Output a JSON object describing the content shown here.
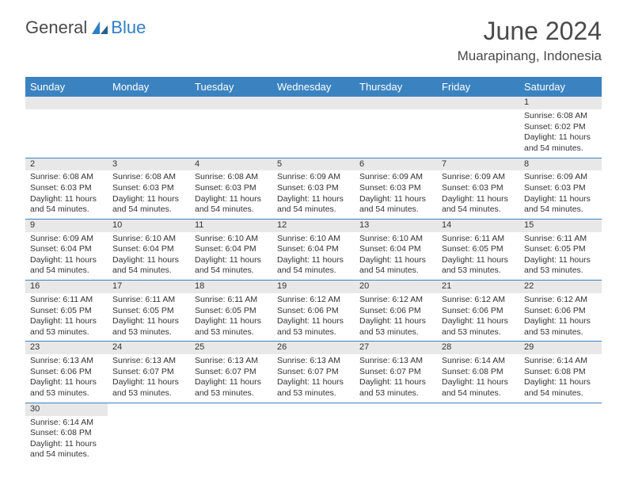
{
  "logo": {
    "word1": "General",
    "word2": "Blue"
  },
  "title": "June 2024",
  "subtitle": "Muarapinang, Indonesia",
  "colors": {
    "header_bg": "#3b83c0",
    "header_text": "#ffffff",
    "daynum_bg": "#e8e8e8",
    "border": "#3b83c0",
    "text": "#333333",
    "title_text": "#4a4a4a",
    "logo_blue": "#2f7fc3"
  },
  "typography": {
    "title_fontsize": 32,
    "subtitle_fontsize": 17,
    "header_fontsize": 13,
    "cell_fontsize": 10.5,
    "daynum_fontsize": 11
  },
  "columns": [
    "Sunday",
    "Monday",
    "Tuesday",
    "Wednesday",
    "Thursday",
    "Friday",
    "Saturday"
  ],
  "grid": [
    [
      null,
      null,
      null,
      null,
      null,
      null,
      {
        "n": 1,
        "sr": "6:08 AM",
        "ss": "6:02 PM",
        "dl": "11 hours and 54 minutes."
      }
    ],
    [
      {
        "n": 2,
        "sr": "6:08 AM",
        "ss": "6:03 PM",
        "dl": "11 hours and 54 minutes."
      },
      {
        "n": 3,
        "sr": "6:08 AM",
        "ss": "6:03 PM",
        "dl": "11 hours and 54 minutes."
      },
      {
        "n": 4,
        "sr": "6:08 AM",
        "ss": "6:03 PM",
        "dl": "11 hours and 54 minutes."
      },
      {
        "n": 5,
        "sr": "6:09 AM",
        "ss": "6:03 PM",
        "dl": "11 hours and 54 minutes."
      },
      {
        "n": 6,
        "sr": "6:09 AM",
        "ss": "6:03 PM",
        "dl": "11 hours and 54 minutes."
      },
      {
        "n": 7,
        "sr": "6:09 AM",
        "ss": "6:03 PM",
        "dl": "11 hours and 54 minutes."
      },
      {
        "n": 8,
        "sr": "6:09 AM",
        "ss": "6:03 PM",
        "dl": "11 hours and 54 minutes."
      }
    ],
    [
      {
        "n": 9,
        "sr": "6:09 AM",
        "ss": "6:04 PM",
        "dl": "11 hours and 54 minutes."
      },
      {
        "n": 10,
        "sr": "6:10 AM",
        "ss": "6:04 PM",
        "dl": "11 hours and 54 minutes."
      },
      {
        "n": 11,
        "sr": "6:10 AM",
        "ss": "6:04 PM",
        "dl": "11 hours and 54 minutes."
      },
      {
        "n": 12,
        "sr": "6:10 AM",
        "ss": "6:04 PM",
        "dl": "11 hours and 54 minutes."
      },
      {
        "n": 13,
        "sr": "6:10 AM",
        "ss": "6:04 PM",
        "dl": "11 hours and 54 minutes."
      },
      {
        "n": 14,
        "sr": "6:11 AM",
        "ss": "6:05 PM",
        "dl": "11 hours and 53 minutes."
      },
      {
        "n": 15,
        "sr": "6:11 AM",
        "ss": "6:05 PM",
        "dl": "11 hours and 53 minutes."
      }
    ],
    [
      {
        "n": 16,
        "sr": "6:11 AM",
        "ss": "6:05 PM",
        "dl": "11 hours and 53 minutes."
      },
      {
        "n": 17,
        "sr": "6:11 AM",
        "ss": "6:05 PM",
        "dl": "11 hours and 53 minutes."
      },
      {
        "n": 18,
        "sr": "6:11 AM",
        "ss": "6:05 PM",
        "dl": "11 hours and 53 minutes."
      },
      {
        "n": 19,
        "sr": "6:12 AM",
        "ss": "6:06 PM",
        "dl": "11 hours and 53 minutes."
      },
      {
        "n": 20,
        "sr": "6:12 AM",
        "ss": "6:06 PM",
        "dl": "11 hours and 53 minutes."
      },
      {
        "n": 21,
        "sr": "6:12 AM",
        "ss": "6:06 PM",
        "dl": "11 hours and 53 minutes."
      },
      {
        "n": 22,
        "sr": "6:12 AM",
        "ss": "6:06 PM",
        "dl": "11 hours and 53 minutes."
      }
    ],
    [
      {
        "n": 23,
        "sr": "6:13 AM",
        "ss": "6:06 PM",
        "dl": "11 hours and 53 minutes."
      },
      {
        "n": 24,
        "sr": "6:13 AM",
        "ss": "6:07 PM",
        "dl": "11 hours and 53 minutes."
      },
      {
        "n": 25,
        "sr": "6:13 AM",
        "ss": "6:07 PM",
        "dl": "11 hours and 53 minutes."
      },
      {
        "n": 26,
        "sr": "6:13 AM",
        "ss": "6:07 PM",
        "dl": "11 hours and 53 minutes."
      },
      {
        "n": 27,
        "sr": "6:13 AM",
        "ss": "6:07 PM",
        "dl": "11 hours and 53 minutes."
      },
      {
        "n": 28,
        "sr": "6:14 AM",
        "ss": "6:08 PM",
        "dl": "11 hours and 54 minutes."
      },
      {
        "n": 29,
        "sr": "6:14 AM",
        "ss": "6:08 PM",
        "dl": "11 hours and 54 minutes."
      }
    ],
    [
      {
        "n": 30,
        "sr": "6:14 AM",
        "ss": "6:08 PM",
        "dl": "11 hours and 54 minutes."
      },
      null,
      null,
      null,
      null,
      null,
      null
    ]
  ],
  "labels": {
    "sunrise": "Sunrise:",
    "sunset": "Sunset:",
    "daylight": "Daylight:"
  }
}
